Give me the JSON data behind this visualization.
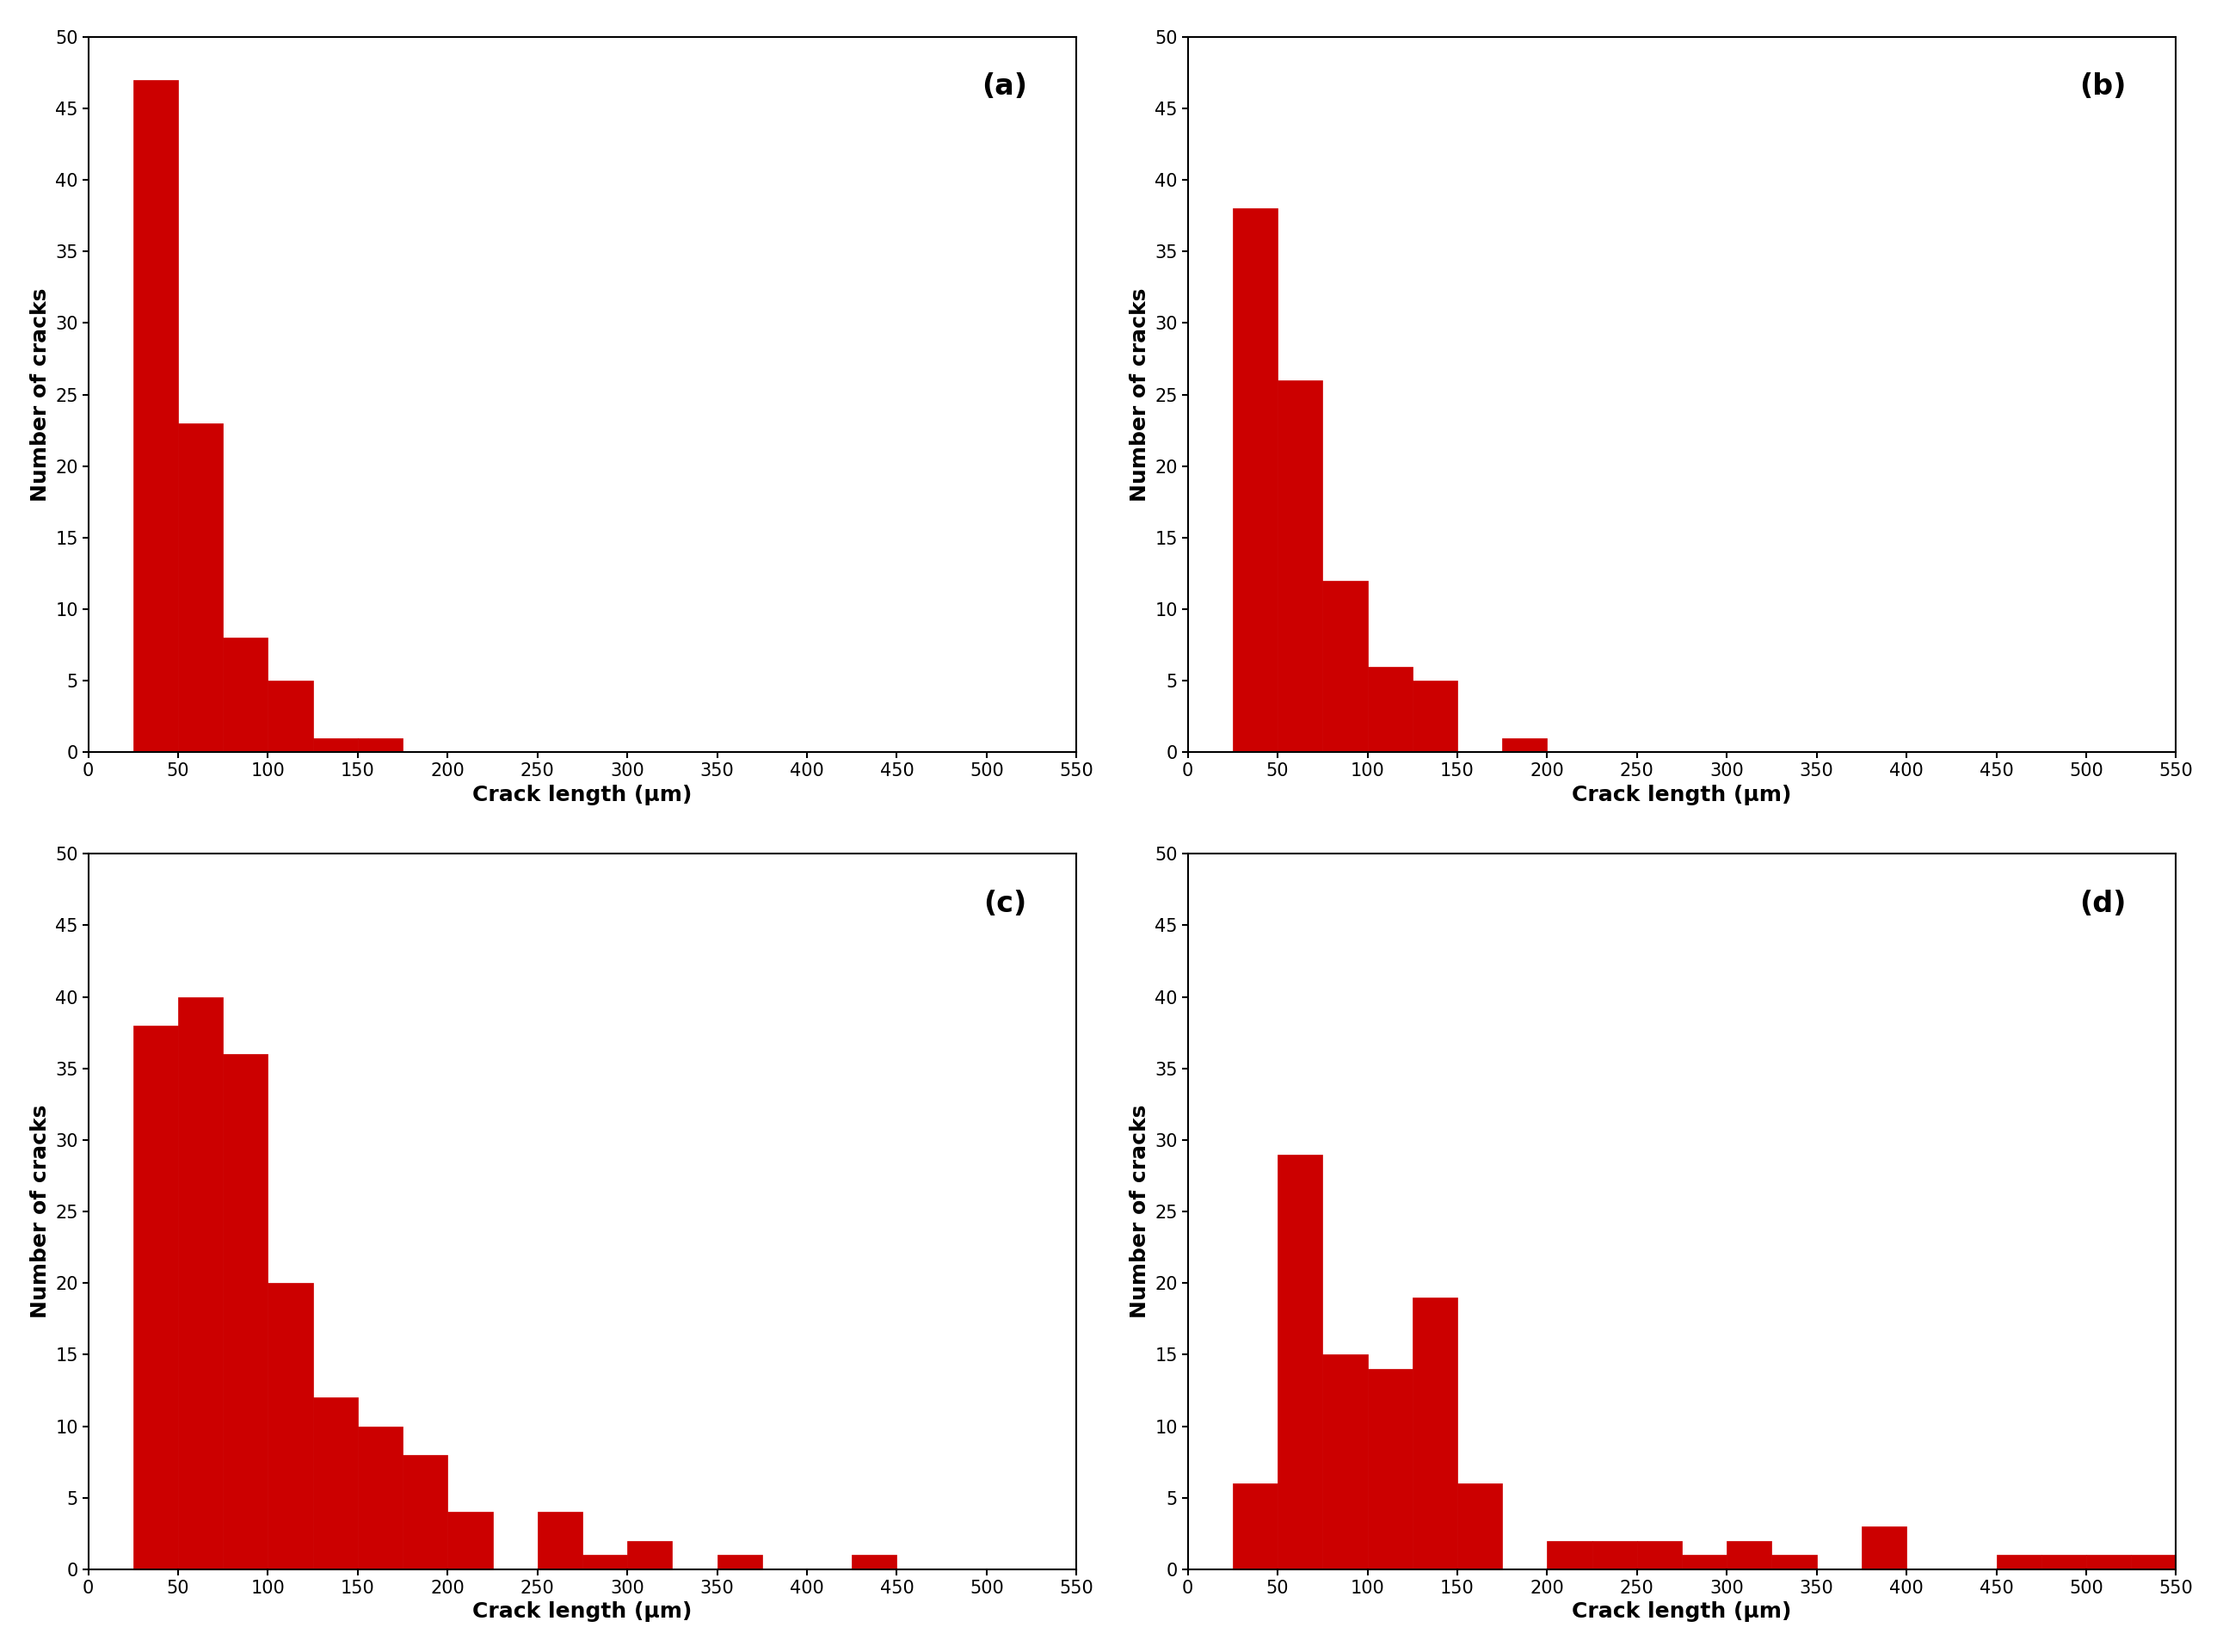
{
  "bin_width": 25,
  "xlim": [
    0,
    550
  ],
  "ylim": [
    0,
    50
  ],
  "xticks": [
    0,
    50,
    100,
    150,
    200,
    250,
    300,
    350,
    400,
    450,
    500,
    550
  ],
  "yticks": [
    0,
    5,
    10,
    15,
    20,
    25,
    30,
    35,
    40,
    45,
    50
  ],
  "bar_color": "#cc0000",
  "bar_edge_color": "#cc0000",
  "xlabel": "Crack length (μm)",
  "ylabel": "Number of cracks",
  "background_color": "#ffffff",
  "label_fontsize": 18,
  "tick_fontsize": 15,
  "panel_label_fontsize": 24,
  "subplots": [
    {
      "label": "(a)",
      "bin_lefts": [
        25,
        50,
        75,
        100,
        125,
        150
      ],
      "heights": [
        47,
        23,
        8,
        5,
        1,
        1
      ]
    },
    {
      "label": "(b)",
      "bin_lefts": [
        25,
        50,
        75,
        100,
        125,
        175
      ],
      "heights": [
        38,
        26,
        12,
        6,
        5,
        1
      ]
    },
    {
      "label": "(c)",
      "bin_lefts": [
        25,
        50,
        75,
        100,
        125,
        150,
        175,
        200,
        250,
        275,
        300,
        350,
        425
      ],
      "heights": [
        38,
        40,
        36,
        20,
        12,
        10,
        8,
        4,
        4,
        1,
        2,
        1,
        1
      ]
    },
    {
      "label": "(d)",
      "bin_lefts": [
        25,
        50,
        75,
        100,
        125,
        150,
        200,
        225,
        250,
        275,
        300,
        325,
        375,
        450,
        475,
        500,
        525
      ],
      "heights": [
        6,
        29,
        15,
        14,
        19,
        6,
        2,
        2,
        2,
        1,
        2,
        1,
        3,
        1,
        1,
        1,
        1
      ]
    }
  ]
}
